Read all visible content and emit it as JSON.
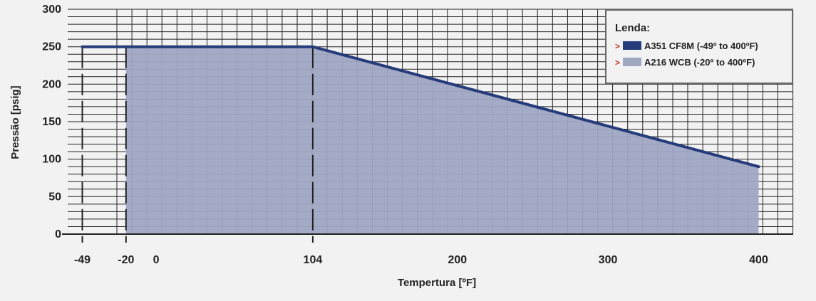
{
  "chart_data": {
    "type": "area",
    "xlabel": "Tempertura [ºF]",
    "ylabel": "Pressão [psig]",
    "xlim": [
      -49,
      410
    ],
    "ylim": [
      0,
      300
    ],
    "x_ticks": [
      -49,
      -20,
      0,
      104,
      200,
      300,
      400
    ],
    "y_ticks": [
      0,
      50,
      100,
      150,
      200,
      250,
      300
    ],
    "grid": true,
    "legend_position": "top-right",
    "legend_title": "Lenda:",
    "series": [
      {
        "name": "A351 CF8M (-49º to 400ºF)",
        "render": "line",
        "color": "#263b7a",
        "points": [
          [
            -49,
            250
          ],
          [
            104,
            250
          ],
          [
            400,
            90
          ]
        ]
      },
      {
        "name": "A216 WCB (-20º to 400ºF)",
        "render": "area",
        "color": "#9fa7c3",
        "points": [
          [
            -20,
            250
          ],
          [
            104,
            250
          ],
          [
            400,
            90
          ]
        ]
      }
    ],
    "dashed_markers_x": [
      -49,
      -20,
      104
    ],
    "colors": {
      "background": "#f2f2f2",
      "grid": "#222222",
      "legend_arrow": "#c0392b"
    }
  }
}
